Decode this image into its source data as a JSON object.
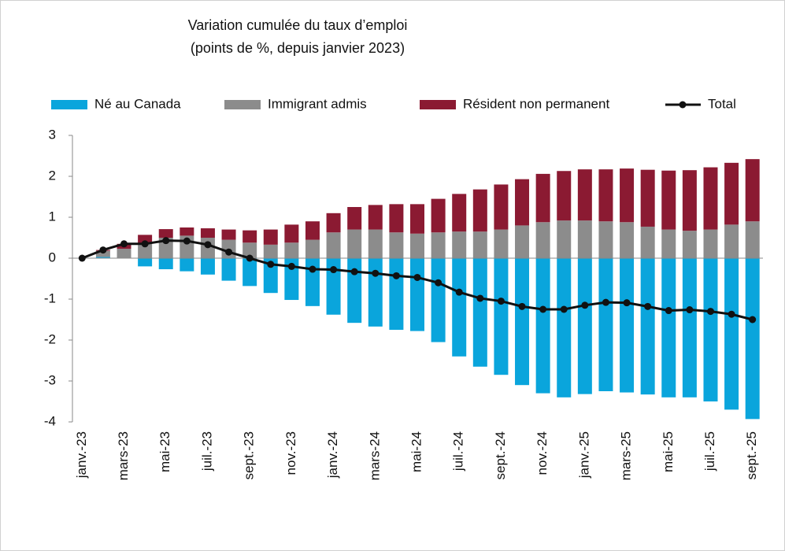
{
  "chart_data": {
    "type": "bar",
    "stacked": true,
    "title": "Variation cumulée du taux d’emploi",
    "subtitle": "(points de %, depuis janvier 2023)",
    "categories": [
      "janv.-23",
      null,
      "mars-23",
      null,
      "mai-23",
      null,
      "juil.-23",
      null,
      "sept.-23",
      null,
      "nov.-23",
      null,
      "janv.-24",
      null,
      "mars-24",
      null,
      "mai-24",
      null,
      "juil.-24",
      null,
      "sept.-24",
      null,
      "nov.-24",
      null,
      "janv.-25",
      null,
      "mars-25",
      null,
      "mai-25",
      null,
      "juil.-25",
      null,
      "sept.-25"
    ],
    "series": [
      {
        "name": "Né au Canada",
        "color": "#0aa5dc",
        "type": "bar",
        "values": [
          0,
          0.03,
          0,
          -0.2,
          -0.27,
          -0.32,
          -0.4,
          -0.55,
          -0.68,
          -0.85,
          -1.02,
          -1.17,
          -1.38,
          -1.58,
          -1.67,
          -1.75,
          -1.78,
          -2.05,
          -2.4,
          -2.65,
          -2.85,
          -3.1,
          -3.3,
          -3.4,
          -3.32,
          -3.25,
          -3.28,
          -3.33,
          -3.4,
          -3.4,
          -3.5,
          -3.7,
          -3.93
        ]
      },
      {
        "name": "Immigrant admis",
        "color": "#8c8c8c",
        "type": "bar",
        "values": [
          0,
          0.15,
          0.23,
          0.35,
          0.5,
          0.55,
          0.5,
          0.45,
          0.38,
          0.33,
          0.38,
          0.45,
          0.63,
          0.7,
          0.7,
          0.63,
          0.6,
          0.63,
          0.65,
          0.65,
          0.7,
          0.8,
          0.88,
          0.92,
          0.92,
          0.9,
          0.88,
          0.77,
          0.7,
          0.67,
          0.7,
          0.82,
          0.9
        ]
      },
      {
        "name": "Résident non permanent",
        "color": "#8b1a32",
        "type": "bar",
        "values": [
          0,
          0.02,
          0.12,
          0.22,
          0.21,
          0.2,
          0.23,
          0.25,
          0.3,
          0.37,
          0.44,
          0.45,
          0.47,
          0.55,
          0.6,
          0.69,
          0.72,
          0.82,
          0.92,
          1.03,
          1.1,
          1.13,
          1.18,
          1.21,
          1.25,
          1.27,
          1.31,
          1.39,
          1.44,
          1.48,
          1.52,
          1.51,
          1.52
        ]
      },
      {
        "name": "Total",
        "color": "#111111",
        "type": "line",
        "values": [
          0,
          0.2,
          0.35,
          0.35,
          0.43,
          0.42,
          0.33,
          0.15,
          0,
          -0.15,
          -0.2,
          -0.27,
          -0.28,
          -0.33,
          -0.37,
          -0.43,
          -0.47,
          -0.6,
          -0.83,
          -0.98,
          -1.05,
          -1.18,
          -1.25,
          -1.25,
          -1.15,
          -1.08,
          -1.09,
          -1.18,
          -1.28,
          -1.26,
          -1.3,
          -1.37,
          -1.5
        ]
      }
    ],
    "ylim": [
      -4,
      3
    ],
    "yticks": [
      -4,
      -3,
      -2,
      -1,
      0,
      1,
      2,
      3
    ],
    "grid": false,
    "legend": "top"
  }
}
